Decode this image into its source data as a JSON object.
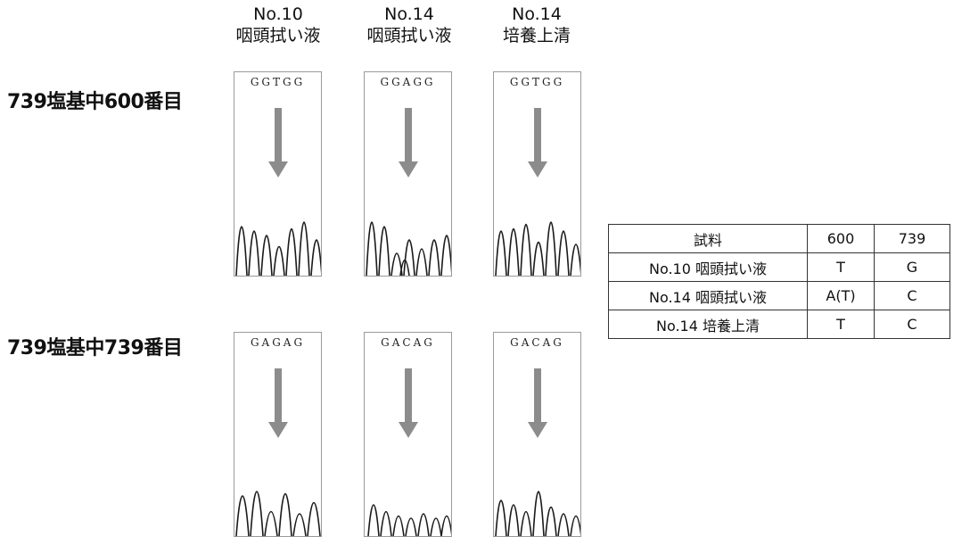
{
  "columns": [
    {
      "line1": "No.10",
      "line2": "咽頭拭い液"
    },
    {
      "line1": "No.14",
      "line2": "咽頭拭い液"
    },
    {
      "line1": "No.14",
      "line2": "培養上清"
    }
  ],
  "rows": [
    {
      "label": "739塩基中600番目",
      "sequences": [
        "GGTGG",
        "GGAGG",
        "GGTGG"
      ]
    },
    {
      "label": "739塩基中739番目",
      "sequences": [
        "GAGAG",
        "GACAG",
        "GACAG"
      ]
    }
  ],
  "table": {
    "headers": [
      "試料",
      "600",
      "739"
    ],
    "rows": [
      [
        "No.10 咽頭拭い液",
        "T",
        "G"
      ],
      [
        "No.14 咽頭拭い液",
        "A(T)",
        "C"
      ],
      [
        "No.14 培養上清",
        "T",
        "C"
      ]
    ]
  },
  "colors": {
    "arrow": "#8c8c8c",
    "trace": "#1a1a1a",
    "border": "#9a9a9a"
  }
}
